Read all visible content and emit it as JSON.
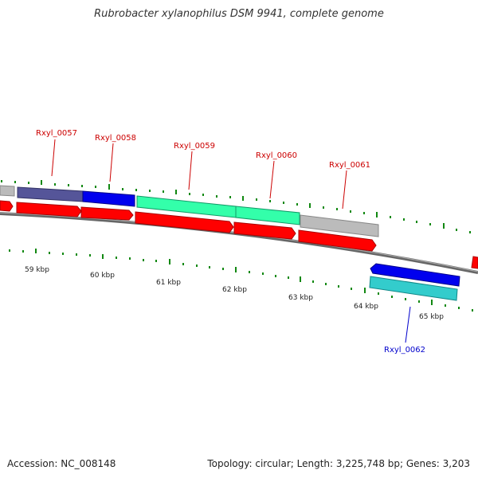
{
  "title": "Rubrobacter xylanophilus DSM 9941, complete genome",
  "footer": {
    "accession": "Accession: NC_008148",
    "topology": "Topology: circular; Length: 3,225,748 bp; Genes: 3,203"
  },
  "colors": {
    "gene_red": "#ff0000",
    "gene_blue": "#0000ee",
    "gene_navy": "#555599",
    "gene_green": "#33ffaa",
    "gene_cyan": "#33cccc",
    "gene_gray": "#bbbbbb",
    "tick_green": "#118811",
    "label_red": "#cc0000",
    "label_blue": "#0000cc",
    "backbone": "#777777"
  },
  "gene_labels": [
    {
      "text": "Rxyl_0057",
      "color": "label_red"
    },
    {
      "text": "Rxyl_0058",
      "color": "label_red"
    },
    {
      "text": "Rxyl_0059",
      "color": "label_red"
    },
    {
      "text": "Rxyl_0060",
      "color": "label_red"
    },
    {
      "text": "Rxyl_0061",
      "color": "label_red"
    },
    {
      "text": "Rxyl_0062",
      "color": "label_blue"
    }
  ],
  "scale_labels": [
    "59 kbp",
    "60 kbp",
    "61 kbp",
    "62 kbp",
    "63 kbp",
    "64 kbp",
    "65 kbp"
  ]
}
